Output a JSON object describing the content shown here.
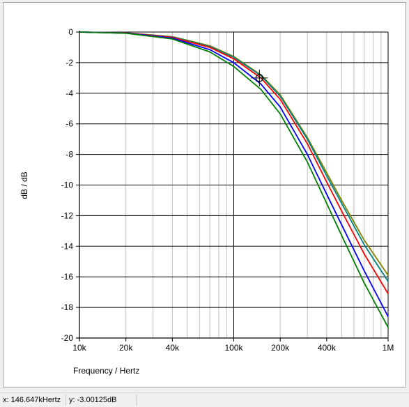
{
  "status": {
    "x_readout": "x: 146.647kHertz",
    "y_readout": "y: -3.00125dB"
  },
  "colors": {
    "background": "#ffffff",
    "major_grid": "#000000",
    "minor_grid": "#c0c0c0",
    "cursor": "#000000"
  },
  "cursor": {
    "x": 146647,
    "y": -3.00125
  },
  "chart_data": {
    "type": "line",
    "xlabel": "Frequency / Hertz",
    "ylabel": "dB / dB",
    "xscale": "log",
    "xlim": [
      10000,
      1000000
    ],
    "ylim": [
      -20,
      0
    ],
    "grid": true,
    "x_ticks": [
      {
        "value": 10000,
        "label": "10k"
      },
      {
        "value": 20000,
        "label": "20k"
      },
      {
        "value": 40000,
        "label": "40k"
      },
      {
        "value": 100000,
        "label": "100k"
      },
      {
        "value": 200000,
        "label": "200k"
      },
      {
        "value": 400000,
        "label": "400k"
      },
      {
        "value": 1000000,
        "label": "1M"
      }
    ],
    "y_ticks": [
      {
        "value": 0,
        "label": "0"
      },
      {
        "value": -2,
        "label": "-2"
      },
      {
        "value": -4,
        "label": "-4"
      },
      {
        "value": -6,
        "label": "-6"
      },
      {
        "value": -8,
        "label": "-8"
      },
      {
        "value": -10,
        "label": "-10"
      },
      {
        "value": -12,
        "label": "-12"
      },
      {
        "value": -14,
        "label": "-14"
      },
      {
        "value": -16,
        "label": "-16"
      },
      {
        "value": -18,
        "label": "-18"
      },
      {
        "value": -20,
        "label": "-20"
      }
    ],
    "series": [
      {
        "color": "#808000",
        "x": [
          10000,
          20000,
          40000,
          70000,
          100000,
          150000,
          200000,
          300000,
          400000,
          500000,
          700000,
          1000000
        ],
        "y": [
          0,
          -0.05,
          -0.3,
          -0.9,
          -1.6,
          -2.8,
          -4.1,
          -6.9,
          -9.2,
          -11.0,
          -13.6,
          -15.9
        ]
      },
      {
        "color": "#008080",
        "x": [
          10000,
          20000,
          40000,
          70000,
          100000,
          150000,
          200000,
          300000,
          400000,
          500000,
          700000,
          1000000
        ],
        "y": [
          0,
          -0.05,
          -0.32,
          -0.95,
          -1.65,
          -2.85,
          -4.2,
          -7.0,
          -9.4,
          -11.2,
          -13.9,
          -16.3
        ]
      },
      {
        "color": "#ff0000",
        "x": [
          10000,
          20000,
          40000,
          70000,
          100000,
          150000,
          200000,
          300000,
          400000,
          500000,
          700000,
          1000000
        ],
        "y": [
          0,
          -0.06,
          -0.35,
          -1.0,
          -1.75,
          -3.0,
          -4.4,
          -7.3,
          -9.8,
          -11.7,
          -14.5,
          -17.1
        ]
      },
      {
        "color": "#0000ff",
        "x": [
          10000,
          20000,
          40000,
          70000,
          100000,
          150000,
          200000,
          300000,
          400000,
          500000,
          700000,
          1000000
        ],
        "y": [
          0,
          -0.07,
          -0.4,
          -1.15,
          -2.0,
          -3.4,
          -4.9,
          -8.0,
          -10.6,
          -12.6,
          -15.6,
          -18.6
        ]
      },
      {
        "color": "#008000",
        "x": [
          10000,
          20000,
          40000,
          70000,
          100000,
          150000,
          200000,
          300000,
          400000,
          500000,
          700000,
          1000000
        ],
        "y": [
          0,
          -0.08,
          -0.45,
          -1.3,
          -2.25,
          -3.75,
          -5.35,
          -8.5,
          -11.2,
          -13.3,
          -16.4,
          -19.3
        ]
      }
    ]
  }
}
